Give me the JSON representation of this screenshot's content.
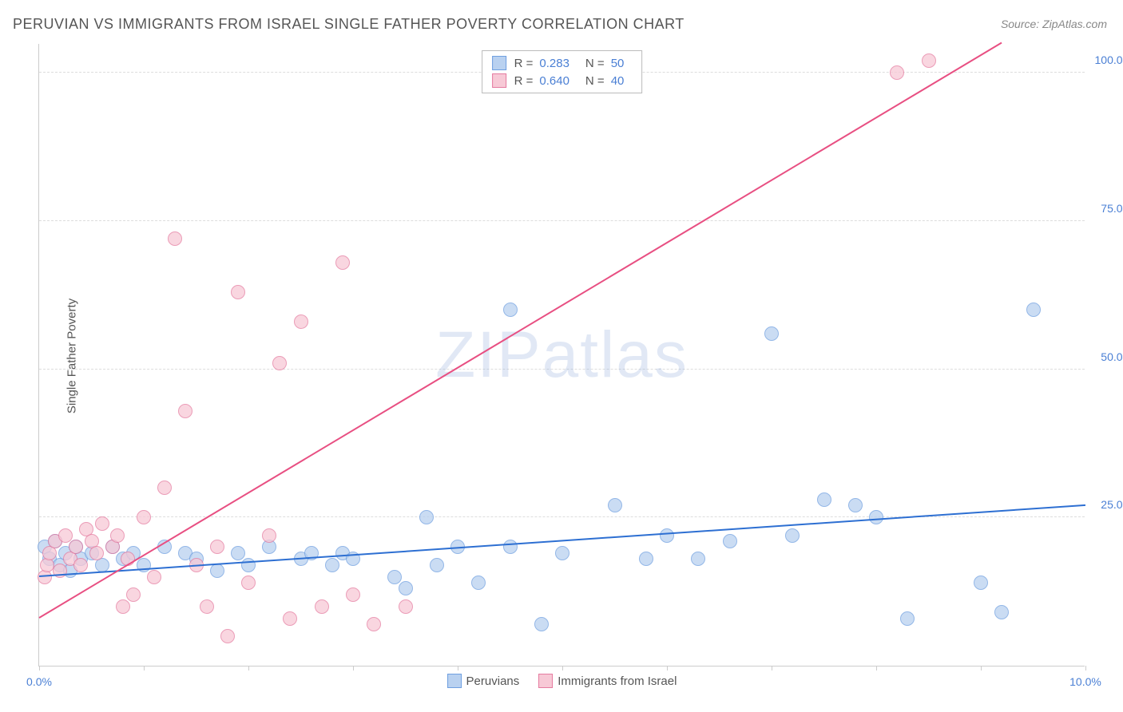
{
  "title": "PERUVIAN VS IMMIGRANTS FROM ISRAEL SINGLE FATHER POVERTY CORRELATION CHART",
  "source_label": "Source:",
  "source_value": "ZipAtlas.com",
  "y_axis_label": "Single Father Poverty",
  "watermark": "ZIPatlas",
  "chart": {
    "type": "scatter",
    "xlim": [
      0,
      10
    ],
    "ylim": [
      0,
      105
    ],
    "x_ticks": [
      0,
      1,
      2,
      3,
      4,
      5,
      6,
      7,
      8,
      9,
      10
    ],
    "x_tick_labels": {
      "0": "0.0%",
      "10": "10.0%"
    },
    "y_ticks": [
      25,
      50,
      75,
      100
    ],
    "y_tick_labels": [
      "25.0%",
      "50.0%",
      "75.0%",
      "100.0%"
    ],
    "grid_color": "#dddddd",
    "background_color": "#ffffff",
    "axis_color": "#cccccc",
    "tick_label_color": "#4a7fd4",
    "title_color": "#555555",
    "title_fontsize": 18,
    "label_fontsize": 15
  },
  "series": [
    {
      "name": "Peruvians",
      "color_fill": "#b9d1f0",
      "color_stroke": "#6f9fe0",
      "marker_radius": 9,
      "r": "0.283",
      "n": "50",
      "trend": {
        "x1": 0,
        "y1": 15,
        "x2": 10,
        "y2": 27,
        "color": "#2d6fd2",
        "width": 2
      },
      "points": [
        [
          0.05,
          20
        ],
        [
          0.1,
          18
        ],
        [
          0.15,
          21
        ],
        [
          0.2,
          17
        ],
        [
          0.25,
          19
        ],
        [
          0.3,
          16
        ],
        [
          0.35,
          20
        ],
        [
          0.4,
          18
        ],
        [
          0.5,
          19
        ],
        [
          0.6,
          17
        ],
        [
          0.7,
          20
        ],
        [
          0.8,
          18
        ],
        [
          0.9,
          19
        ],
        [
          1.0,
          17
        ],
        [
          1.2,
          20
        ],
        [
          1.4,
          19
        ],
        [
          1.5,
          18
        ],
        [
          1.7,
          16
        ],
        [
          1.9,
          19
        ],
        [
          2.0,
          17
        ],
        [
          2.2,
          20
        ],
        [
          2.5,
          18
        ],
        [
          2.6,
          19
        ],
        [
          2.8,
          17
        ],
        [
          2.9,
          19
        ],
        [
          3.0,
          18
        ],
        [
          3.4,
          15
        ],
        [
          3.5,
          13
        ],
        [
          3.7,
          25
        ],
        [
          3.8,
          17
        ],
        [
          4.0,
          20
        ],
        [
          4.2,
          14
        ],
        [
          4.5,
          20
        ],
        [
          4.8,
          7
        ],
        [
          4.5,
          60
        ],
        [
          5.0,
          19
        ],
        [
          5.5,
          27
        ],
        [
          5.8,
          18
        ],
        [
          6.0,
          22
        ],
        [
          6.3,
          18
        ],
        [
          6.6,
          21
        ],
        [
          7.0,
          56
        ],
        [
          7.2,
          22
        ],
        [
          7.5,
          28
        ],
        [
          7.8,
          27
        ],
        [
          8.0,
          25
        ],
        [
          8.3,
          8
        ],
        [
          9.0,
          14
        ],
        [
          9.2,
          9
        ],
        [
          9.5,
          60
        ]
      ]
    },
    {
      "name": "Immigrants from Israel",
      "color_fill": "#f7c9d6",
      "color_stroke": "#e57ba0",
      "marker_radius": 9,
      "r": "0.640",
      "n": "40",
      "trend": {
        "x1": 0,
        "y1": 8,
        "x2": 9.2,
        "y2": 105,
        "color": "#e84f82",
        "width": 2
      },
      "points": [
        [
          0.05,
          15
        ],
        [
          0.08,
          17
        ],
        [
          0.1,
          19
        ],
        [
          0.15,
          21
        ],
        [
          0.2,
          16
        ],
        [
          0.25,
          22
        ],
        [
          0.3,
          18
        ],
        [
          0.35,
          20
        ],
        [
          0.4,
          17
        ],
        [
          0.45,
          23
        ],
        [
          0.5,
          21
        ],
        [
          0.55,
          19
        ],
        [
          0.6,
          24
        ],
        [
          0.7,
          20
        ],
        [
          0.75,
          22
        ],
        [
          0.8,
          10
        ],
        [
          0.85,
          18
        ],
        [
          0.9,
          12
        ],
        [
          1.0,
          25
        ],
        [
          1.1,
          15
        ],
        [
          1.2,
          30
        ],
        [
          1.3,
          72
        ],
        [
          1.4,
          43
        ],
        [
          1.5,
          17
        ],
        [
          1.6,
          10
        ],
        [
          1.7,
          20
        ],
        [
          1.8,
          5
        ],
        [
          1.9,
          63
        ],
        [
          2.0,
          14
        ],
        [
          2.2,
          22
        ],
        [
          2.3,
          51
        ],
        [
          2.4,
          8
        ],
        [
          2.5,
          58
        ],
        [
          2.7,
          10
        ],
        [
          2.9,
          68
        ],
        [
          3.0,
          12
        ],
        [
          3.2,
          7
        ],
        [
          3.5,
          10
        ],
        [
          8.2,
          100
        ],
        [
          8.5,
          102
        ]
      ]
    }
  ],
  "legend_top": {
    "r_label": "R =",
    "n_label": "N ="
  },
  "legend_bottom": [
    {
      "label": "Peruvians",
      "fill": "#b9d1f0",
      "stroke": "#6f9fe0"
    },
    {
      "label": "Immigrants from Israel",
      "fill": "#f7c9d6",
      "stroke": "#e57ba0"
    }
  ]
}
